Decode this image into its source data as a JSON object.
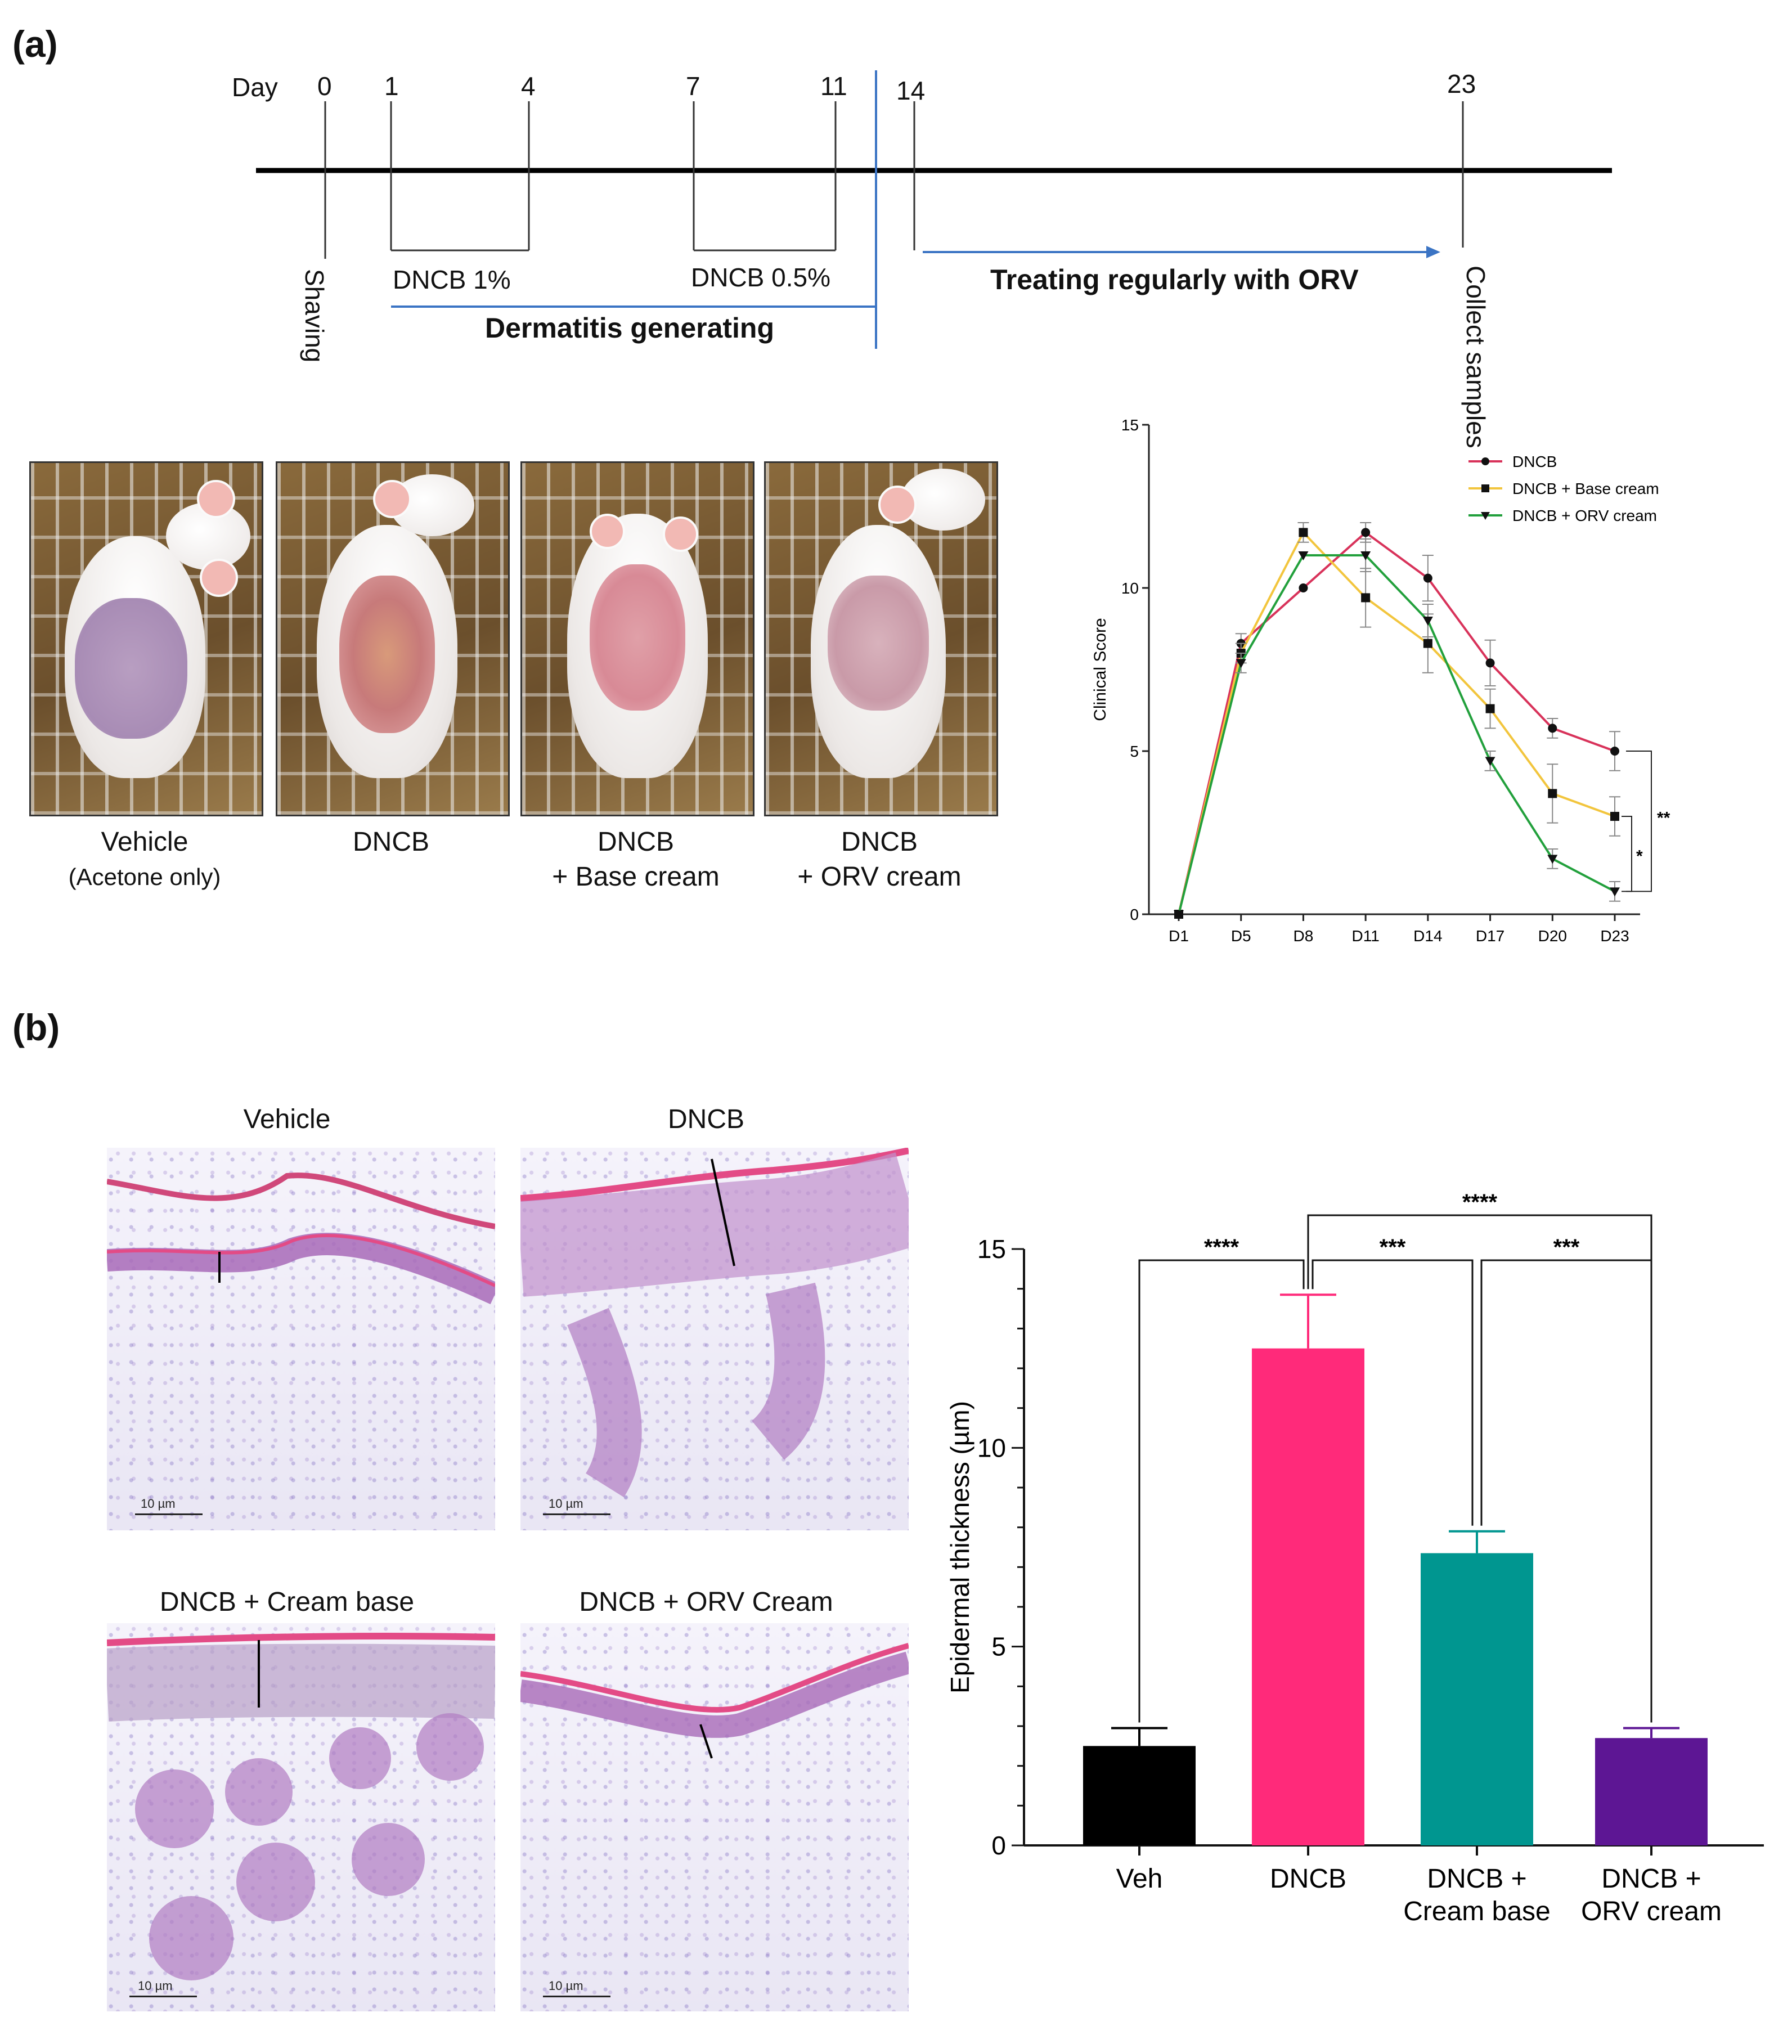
{
  "panel_a": {
    "label": "(a)",
    "timeline": {
      "day_label": "Day",
      "ticks": [
        "0",
        "1",
        "4",
        "7",
        "11",
        "14",
        "23"
      ],
      "shaving": "Shaving",
      "dncb1": "DNCB 1%",
      "dncb05": "DNCB 0.5%",
      "dermatitis": "Dermatitis generating",
      "treating": "Treating regularly with ORV",
      "collect": "Collect samples"
    },
    "photos": [
      {
        "caption_line1": "Vehicle",
        "caption_line2": "(Acetone only)"
      },
      {
        "caption_line1": "DNCB",
        "caption_line2": ""
      },
      {
        "caption_line1": "DNCB",
        "caption_line2": "+ Base cream"
      },
      {
        "caption_line1": "DNCB",
        "caption_line2": "+ ORV cream"
      }
    ]
  },
  "panel_b": {
    "label": "(b)",
    "histology": [
      {
        "title": "Vehicle",
        "scale": "10 µm"
      },
      {
        "title": "DNCB",
        "scale": "10 µm"
      },
      {
        "title": "DNCB + Cream base",
        "scale": "10 µm"
      },
      {
        "title": "DNCB + ORV Cream",
        "scale": "10 µm"
      }
    ]
  },
  "colors": {
    "dncb": "#d8325a",
    "base_cream": "#f2c53d",
    "orv_cream": "#22a03c",
    "bar_veh": "#000000",
    "bar_dncb": "#ff2a7a",
    "bar_cream_base": "#009690",
    "bar_orv": "#5d1694",
    "timeline_blue": "#3b74c4"
  },
  "chart_data": [
    {
      "type": "line",
      "title": "",
      "xlabel": "",
      "ylabel": "Clinical Score",
      "x": [
        "D1",
        "D5",
        "D8",
        "D11",
        "D14",
        "D17",
        "D20",
        "D23"
      ],
      "ylim": [
        0,
        15
      ],
      "yticks": [
        "0",
        "5",
        "10",
        "15"
      ],
      "legend_position": "top-right",
      "series": [
        {
          "name": "DNCB",
          "marker": "circle",
          "values": [
            0,
            8.3,
            10,
            11.7,
            10.3,
            7.7,
            5.7,
            5
          ],
          "errors": [
            0,
            0.3,
            0,
            0.3,
            0.7,
            0.7,
            0.3,
            0.6
          ]
        },
        {
          "name": "DNCB + Base cream",
          "marker": "square",
          "values": [
            0,
            8,
            11.7,
            9.7,
            8.3,
            6.3,
            3.7,
            3
          ],
          "errors": [
            0,
            0.3,
            0.3,
            0.9,
            0.9,
            0.6,
            0.9,
            0.6
          ]
        },
        {
          "name": "DNCB + ORV cream",
          "marker": "triangle-down",
          "values": [
            0,
            7.7,
            11,
            11,
            9,
            4.7,
            1.7,
            0.7
          ],
          "errors": [
            0,
            0.3,
            0,
            0.5,
            0.5,
            0.3,
            0.3,
            0.3
          ]
        }
      ],
      "significance": [
        {
          "label": "**",
          "between": [
            "DNCB",
            "DNCB + ORV cream"
          ]
        },
        {
          "label": "*",
          "between": [
            "DNCB + Base cream",
            "DNCB + ORV cream"
          ]
        }
      ]
    },
    {
      "type": "bar",
      "title": "",
      "xlabel": "",
      "ylabel": "Epidermal thickness (µm)",
      "categories": [
        [
          "Veh"
        ],
        [
          "DNCB"
        ],
        [
          "DNCB +",
          "Cream base"
        ],
        [
          "DNCB +",
          "ORV cream"
        ]
      ],
      "values": [
        2.5,
        12.5,
        7.35,
        2.7
      ],
      "errors": [
        0.45,
        1.35,
        0.55,
        0.25
      ],
      "ylim": [
        0,
        15
      ],
      "yticks": [
        "0",
        "5",
        "10",
        "15"
      ],
      "significance": [
        {
          "label": "****",
          "from": 0,
          "to": 1
        },
        {
          "label": "***",
          "from": 1,
          "to": 2
        },
        {
          "label": "***",
          "from": 2,
          "to": 3
        },
        {
          "label": "****",
          "from": 1,
          "to": 3
        }
      ]
    }
  ]
}
